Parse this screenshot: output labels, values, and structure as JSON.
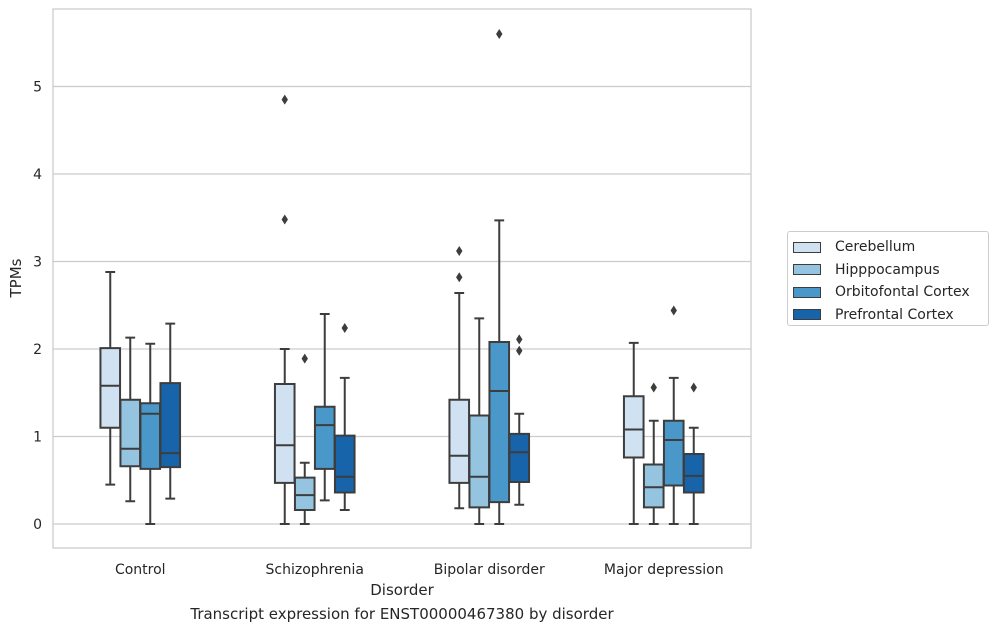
{
  "chart_data": {
    "type": "box",
    "xlabel": "Disorder",
    "ylabel": "TPMs",
    "caption": "Transcript expression for ENST00000467380 by disorder",
    "categories": [
      "Control",
      "Schizophrenia",
      "Bipolar disorder",
      "Major depression"
    ],
    "yticks": [
      0,
      1,
      2,
      3,
      4,
      5
    ],
    "ylim": [
      -0.27,
      5.87
    ],
    "grid": true,
    "legend_position": "right",
    "series": [
      {
        "name": "Cerebellum",
        "color": "#d0e1f2",
        "boxes": [
          {
            "whisker_low": 0.45,
            "q1": 1.1,
            "median": 1.58,
            "q3": 2.01,
            "whisker_high": 2.88,
            "outliers": []
          },
          {
            "whisker_low": 0.0,
            "q1": 0.47,
            "median": 0.9,
            "q3": 1.6,
            "whisker_high": 2.0,
            "outliers": [
              3.48,
              4.85
            ]
          },
          {
            "whisker_low": 0.18,
            "q1": 0.47,
            "median": 0.78,
            "q3": 1.42,
            "whisker_high": 2.64,
            "outliers": [
              2.82,
              3.12
            ]
          },
          {
            "whisker_low": 0.0,
            "q1": 0.76,
            "median": 1.08,
            "q3": 1.46,
            "whisker_high": 2.07,
            "outliers": []
          }
        ]
      },
      {
        "name": "Hipppocampus",
        "color": "#94c4df",
        "boxes": [
          {
            "whisker_low": 0.26,
            "q1": 0.66,
            "median": 0.86,
            "q3": 1.42,
            "whisker_high": 2.13,
            "outliers": []
          },
          {
            "whisker_low": 0.0,
            "q1": 0.16,
            "median": 0.33,
            "q3": 0.53,
            "whisker_high": 0.7,
            "outliers": [
              1.89
            ]
          },
          {
            "whisker_low": 0.0,
            "q1": 0.19,
            "median": 0.54,
            "q3": 1.24,
            "whisker_high": 2.35,
            "outliers": []
          },
          {
            "whisker_low": 0.0,
            "q1": 0.19,
            "median": 0.42,
            "q3": 0.68,
            "whisker_high": 1.18,
            "outliers": [
              1.56
            ]
          }
        ]
      },
      {
        "name": "Orbitofontal Cortex",
        "color": "#4a98c9",
        "boxes": [
          {
            "whisker_low": 0.0,
            "q1": 0.63,
            "median": 1.26,
            "q3": 1.38,
            "whisker_high": 2.06,
            "outliers": []
          },
          {
            "whisker_low": 0.27,
            "q1": 0.63,
            "median": 1.13,
            "q3": 1.34,
            "whisker_high": 2.4,
            "outliers": []
          },
          {
            "whisker_low": 0.0,
            "q1": 0.25,
            "median": 1.52,
            "q3": 2.08,
            "whisker_high": 3.47,
            "outliers": [
              5.6
            ]
          },
          {
            "whisker_low": 0.0,
            "q1": 0.44,
            "median": 0.96,
            "q3": 1.18,
            "whisker_high": 1.67,
            "outliers": [
              2.44
            ]
          }
        ]
      },
      {
        "name": "Prefrontal Cortex",
        "color": "#1764ab",
        "boxes": [
          {
            "whisker_low": 0.29,
            "q1": 0.65,
            "median": 0.81,
            "q3": 1.61,
            "whisker_high": 2.29,
            "outliers": []
          },
          {
            "whisker_low": 0.16,
            "q1": 0.36,
            "median": 0.54,
            "q3": 1.01,
            "whisker_high": 1.67,
            "outliers": [
              2.24
            ]
          },
          {
            "whisker_low": 0.22,
            "q1": 0.48,
            "median": 0.82,
            "q3": 1.03,
            "whisker_high": 1.26,
            "outliers": [
              1.98,
              2.11
            ]
          },
          {
            "whisker_low": 0.0,
            "q1": 0.36,
            "median": 0.55,
            "q3": 0.8,
            "whisker_high": 1.1,
            "outliers": [
              1.56
            ]
          }
        ]
      }
    ]
  }
}
